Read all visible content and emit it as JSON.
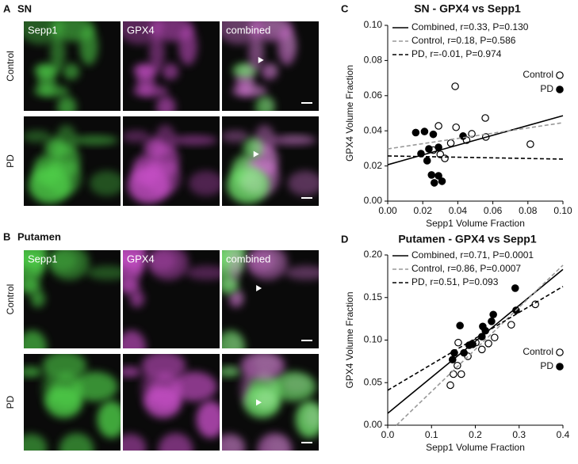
{
  "panels": [
    {
      "letter": "A",
      "region": "SN",
      "columns": [
        "Sepp1",
        "GPX4",
        "combined"
      ],
      "rows": [
        "Control",
        "PD"
      ]
    },
    {
      "letter": "B",
      "region": "Putamen",
      "columns": [
        "Sepp1",
        "GPX4",
        "combined"
      ],
      "rows": [
        "Control",
        "PD"
      ]
    }
  ],
  "chart_data": [
    {
      "type": "scatter",
      "letter": "C",
      "title": "SN - GPX4 vs Sepp1",
      "x_label": "Sepp1 Volume Fraction",
      "y_label": "GPX4 Volume Fraction",
      "xlim": [
        0,
        0.1
      ],
      "ylim": [
        0,
        0.1
      ],
      "xticks": [
        {
          "value": 0,
          "label": "0.00"
        },
        {
          "value": 0.02,
          "label": "0.02"
        },
        {
          "value": 0.04,
          "label": "0.04"
        },
        {
          "value": 0.06,
          "label": "0.06"
        },
        {
          "value": 0.08,
          "label": "0.08"
        },
        {
          "value": 0.1,
          "label": "0.10"
        }
      ],
      "yticks": [
        {
          "value": 0,
          "label": "0.00"
        },
        {
          "value": 0.02,
          "label": "0.02"
        },
        {
          "value": 0.04,
          "label": "0.04"
        },
        {
          "value": 0.06,
          "label": "0.06"
        },
        {
          "value": 0.08,
          "label": "0.08"
        },
        {
          "value": 0.1,
          "label": "0.10"
        }
      ],
      "series": [
        {
          "name": "Control",
          "kind": "points",
          "marker": "open",
          "color": "#000000",
          "x": [
            0.0385,
            0.029,
            0.039,
            0.0557,
            0.056,
            0.0814,
            0.048,
            0.03,
            0.0326,
            0.036,
            0.045,
            0.026
          ],
          "values": [
            0.0653,
            0.0428,
            0.042,
            0.0473,
            0.0365,
            0.0324,
            0.0383,
            0.0266,
            0.0243,
            0.033,
            0.0347,
            0.029
          ]
        },
        {
          "name": "PD",
          "kind": "points",
          "marker": "filled",
          "color": "#000000",
          "x": [
            0.016,
            0.021,
            0.026,
            0.0235,
            0.029,
            0.0225,
            0.025,
            0.029,
            0.0266,
            0.031,
            0.043,
            0.019
          ],
          "values": [
            0.039,
            0.0396,
            0.038,
            0.0297,
            0.0306,
            0.023,
            0.0149,
            0.0144,
            0.0104,
            0.0113,
            0.037,
            0.027
          ]
        },
        {
          "name": "Combined, r=0.33, P=0.130",
          "kind": "line",
          "line_style": "solid",
          "color": "#000000",
          "x": [
            0,
            0.1
          ],
          "values": [
            0.0207,
            0.0486
          ]
        },
        {
          "name": "Control, r=0.18, P=0.586",
          "kind": "line",
          "line_style": "dashed",
          "color": "#999999",
          "x": [
            0,
            0.1
          ],
          "values": [
            0.0297,
            0.0446
          ]
        },
        {
          "name": "PD, r=-0.01, P=0.974",
          "kind": "line",
          "line_style": "dashed",
          "color": "#000000",
          "x": [
            0,
            0.1
          ],
          "values": [
            0.0257,
            0.0239
          ]
        }
      ]
    },
    {
      "type": "scatter",
      "letter": "D",
      "title": "Putamen - GPX4 vs Sepp1",
      "x_label": "Sepp1 Volume Fraction",
      "y_label": "GPX4 Volume Fraction",
      "xlim": [
        0,
        0.4
      ],
      "ylim": [
        0,
        0.2
      ],
      "xticks": [
        {
          "value": 0,
          "label": "0.0"
        },
        0.1,
        0.2,
        0.3,
        0.4
      ],
      "yticks": [
        {
          "value": 0,
          "label": "0.00"
        },
        0.05,
        {
          "value": 0.1,
          "label": "0.10"
        },
        0.15,
        {
          "value": 0.2,
          "label": "0.20"
        }
      ],
      "series": [
        {
          "name": "Control",
          "kind": "points",
          "marker": "open",
          "color": "#000000",
          "x": [
            0.143,
            0.15,
            0.168,
            0.159,
            0.161,
            0.201,
            0.215,
            0.244,
            0.23,
            0.282,
            0.337,
            0.183
          ],
          "values": [
            0.047,
            0.06,
            0.06,
            0.07,
            0.097,
            0.097,
            0.089,
            0.103,
            0.096,
            0.118,
            0.142,
            0.081
          ]
        },
        {
          "name": "PD",
          "kind": "points",
          "marker": "filled",
          "color": "#000000",
          "x": [
            0.148,
            0.152,
            0.174,
            0.186,
            0.194,
            0.165,
            0.217,
            0.223,
            0.241,
            0.237,
            0.293,
            0.291,
            0.215
          ],
          "values": [
            0.077,
            0.085,
            0.085,
            0.094,
            0.095,
            0.117,
            0.116,
            0.111,
            0.13,
            0.122,
            0.135,
            0.161,
            0.104
          ]
        },
        {
          "name": "Combined, r=0.71, P=0.0001",
          "kind": "line",
          "line_style": "solid",
          "color": "#000000",
          "x": [
            0,
            0.4
          ],
          "values": [
            0.014,
            0.183
          ]
        },
        {
          "name": "Control, r=0.86, P=0.0007",
          "kind": "line",
          "line_style": "dashed",
          "color": "#999999",
          "x": [
            0.02,
            0.4
          ],
          "values": [
            0,
            0.188
          ]
        },
        {
          "name": "PD, r=0.51, P=0.093",
          "kind": "line",
          "line_style": "dashed",
          "color": "#000000",
          "x": [
            0,
            0.4
          ],
          "values": [
            0.041,
            0.163
          ]
        }
      ]
    }
  ]
}
